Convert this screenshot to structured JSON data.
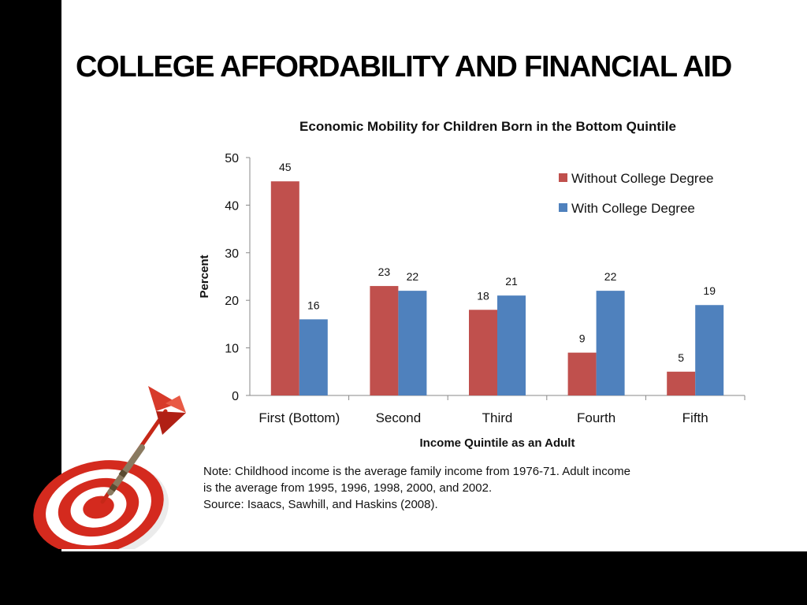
{
  "slide": {
    "title": "COLLEGE AFFORDABILITY AND FINANCIAL AID",
    "note_lines": [
      "Note: Childhood income is the average family income from 1976-71. Adult income",
      "is the average from 1995, 1996, 1998, 2000, and 2002.",
      "Source: Isaacs, Sawhill, and Haskins (2008)."
    ]
  },
  "icons": {
    "decoration": "dart-target-icon"
  },
  "chart_data": {
    "type": "bar",
    "title": "Economic Mobility for Children Born in the Bottom Quintile",
    "xlabel": "Income Quintile as an Adult",
    "ylabel": "Percent",
    "ylim": [
      0,
      50
    ],
    "yticks": [
      0,
      10,
      20,
      30,
      40,
      50
    ],
    "categories": [
      "First (Bottom)",
      "Second",
      "Third",
      "Fourth",
      "Fifth"
    ],
    "series": [
      {
        "name": "Without College Degree",
        "color": "#C0504D",
        "values": [
          45,
          23,
          18,
          9,
          5
        ]
      },
      {
        "name": "With College Degree",
        "color": "#4F81BD",
        "values": [
          16,
          22,
          21,
          22,
          19
        ]
      }
    ],
    "legend": "top-right",
    "data_labels": true,
    "grid": false
  }
}
